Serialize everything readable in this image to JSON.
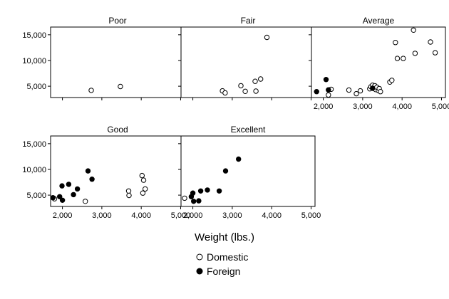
{
  "chart_data": {
    "type": "scatter",
    "layout": "small-multiples",
    "xlabel": "Weight (lbs.)",
    "ylabel": "",
    "xlim": [
      1700,
      5100
    ],
    "ylim": [
      2800,
      16500
    ],
    "xticks": [
      2000,
      3000,
      4000,
      5000
    ],
    "xtick_labels": [
      "2,000",
      "3,000",
      "4,000",
      "5,000"
    ],
    "yticks": [
      5000,
      10000,
      15000
    ],
    "ytick_labels": [
      "5,000",
      "10,000",
      "15,000"
    ],
    "legend": {
      "placement": "bottom-center",
      "entries": [
        {
          "label": "Domestic",
          "marker": "hollow-circle"
        },
        {
          "label": "Foreign",
          "marker": "filled-circle"
        }
      ]
    },
    "colors": {
      "marker": "#000000",
      "frame": "#000000",
      "background": "#ffffff"
    },
    "panels": [
      {
        "title": "Poor",
        "series": [
          {
            "name": "Domestic",
            "points": [
              [
                2730,
                4200
              ],
              [
                3470,
                4950
              ]
            ]
          },
          {
            "name": "Foreign",
            "points": []
          }
        ]
      },
      {
        "title": "Fair",
        "series": [
          {
            "name": "Domestic",
            "points": [
              [
                2750,
                4100
              ],
              [
                2820,
                3700
              ],
              [
                3220,
                5100
              ],
              [
                3330,
                4000
              ],
              [
                3580,
                5950
              ],
              [
                3600,
                4050
              ],
              [
                3720,
                6400
              ],
              [
                3880,
                14500
              ]
            ]
          },
          {
            "name": "Foreign",
            "points": []
          }
        ]
      },
      {
        "title": "Average",
        "series": [
          {
            "name": "Domestic",
            "points": [
              [
                2130,
                3300
              ],
              [
                2200,
                4400
              ],
              [
                2650,
                4250
              ],
              [
                2840,
                3550
              ],
              [
                2940,
                4100
              ],
              [
                3180,
                4500
              ],
              [
                3210,
                4900
              ],
              [
                3250,
                5200
              ],
              [
                3280,
                4600
              ],
              [
                3310,
                5100
              ],
              [
                3330,
                4350
              ],
              [
                3360,
                4800
              ],
              [
                3400,
                4150
              ],
              [
                3420,
                4550
              ],
              [
                3450,
                3950
              ],
              [
                3690,
                5800
              ],
              [
                3740,
                6150
              ],
              [
                3830,
                13500
              ],
              [
                3880,
                10400
              ],
              [
                4030,
                10400
              ],
              [
                4290,
                15900
              ],
              [
                4330,
                11400
              ],
              [
                4720,
                13600
              ],
              [
                4840,
                11500
              ]
            ]
          },
          {
            "name": "Foreign",
            "points": [
              [
                1830,
                3950
              ],
              [
                2070,
                6300
              ],
              [
                2130,
                4300
              ],
              [
                3250,
                4600
              ]
            ]
          }
        ]
      },
      {
        "title": "Good",
        "series": [
          {
            "name": "Domestic",
            "points": [
              [
                1800,
                4300
              ],
              [
                2580,
                3800
              ],
              [
                3680,
                5800
              ],
              [
                3690,
                4950
              ],
              [
                4020,
                8800
              ],
              [
                4040,
                5400
              ],
              [
                4060,
                7900
              ],
              [
                4100,
                6200
              ]
            ]
          },
          {
            "name": "Foreign",
            "points": [
              [
                1760,
                4500
              ],
              [
                1930,
                4700
              ],
              [
                1990,
                6800
              ],
              [
                2000,
                4000
              ],
              [
                2160,
                7100
              ],
              [
                2280,
                5100
              ],
              [
                2380,
                6200
              ],
              [
                2650,
                9700
              ],
              [
                2750,
                8100
              ]
            ]
          }
        ]
      },
      {
        "title": "Excellent",
        "series": [
          {
            "name": "Domestic",
            "points": [
              [
                1790,
                4400
              ]
            ]
          },
          {
            "name": "Foreign",
            "points": [
              [
                1960,
                4700
              ],
              [
                2000,
                5400
              ],
              [
                2020,
                3800
              ],
              [
                2150,
                3900
              ],
              [
                2200,
                5800
              ],
              [
                2370,
                6000
              ],
              [
                2670,
                5800
              ],
              [
                2830,
                9700
              ],
              [
                3160,
                12000
              ]
            ]
          }
        ]
      }
    ]
  }
}
